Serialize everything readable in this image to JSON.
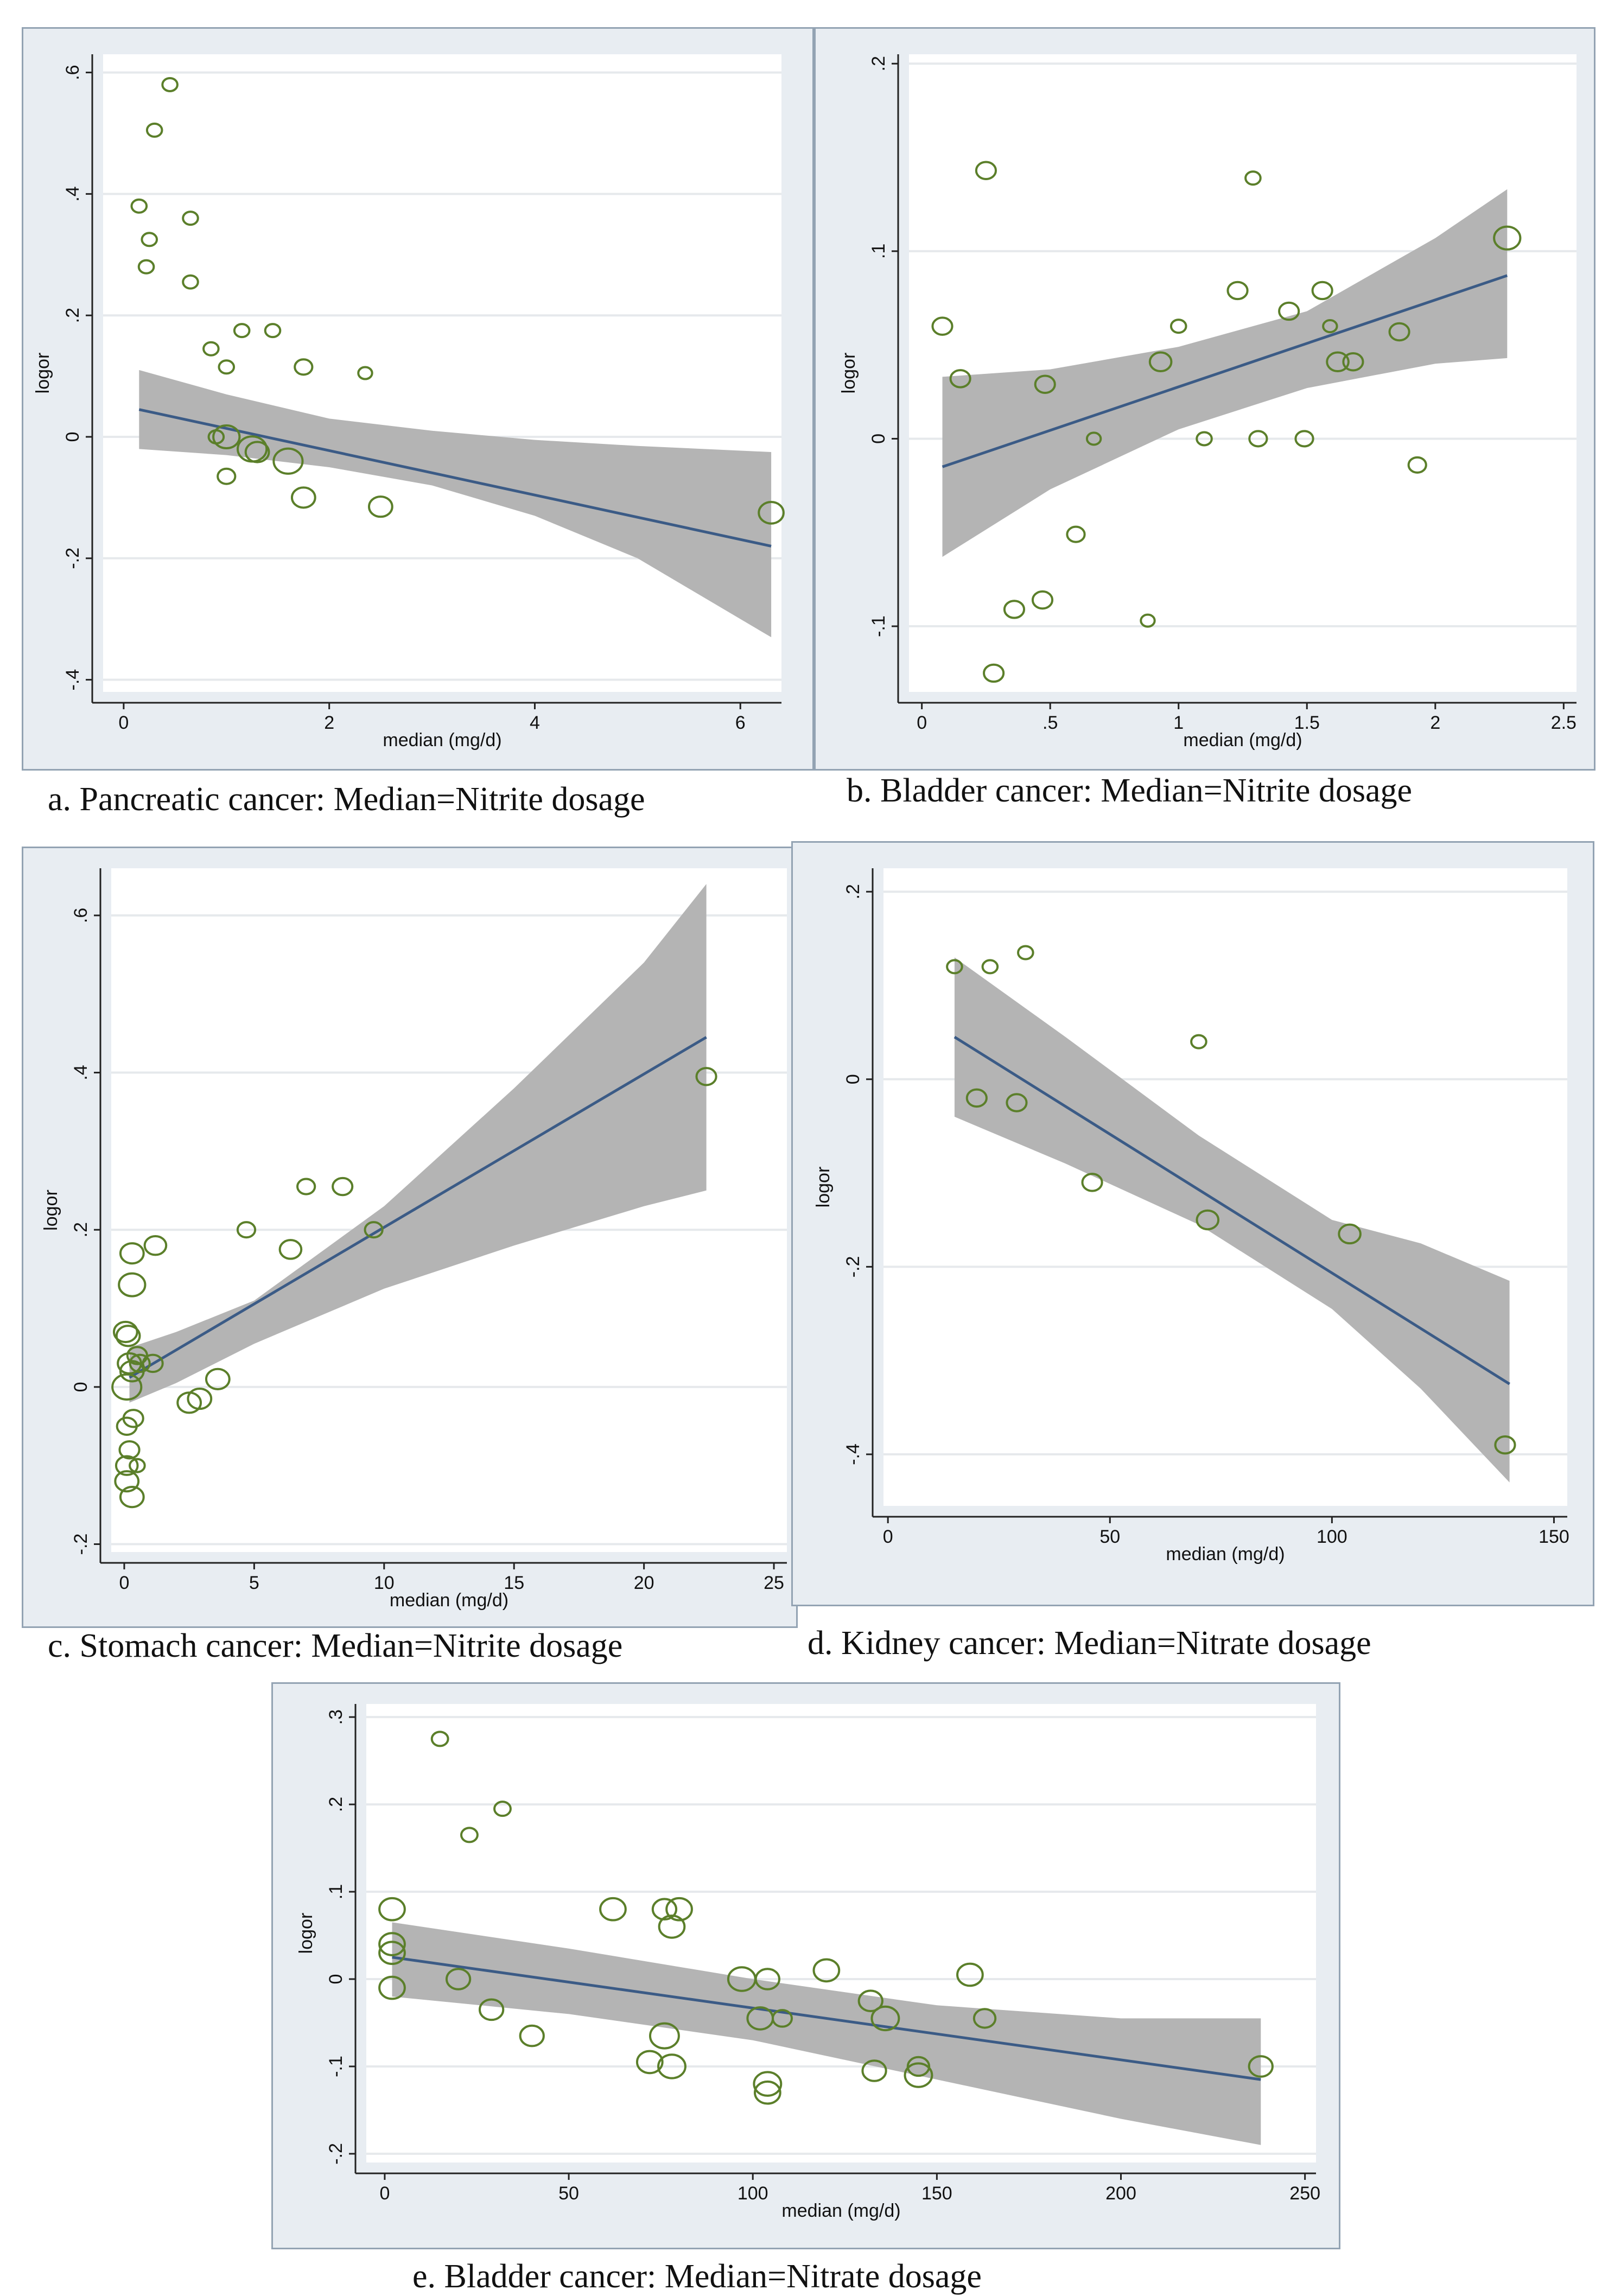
{
  "chart_data": [
    {
      "id": "a",
      "type": "scatter",
      "caption": "a. Pancreatic cancer: Median=Nitrite dosage",
      "xlabel": "median (mg/d)",
      "ylabel": "logor",
      "xlim": [
        -0.2,
        6.4
      ],
      "ylim": [
        -0.42,
        0.63
      ],
      "xticks": [
        {
          "v": 0,
          "label": "0"
        },
        {
          "v": 2,
          "label": "2"
        },
        {
          "v": 4,
          "label": "4"
        },
        {
          "v": 6,
          "label": "6"
        }
      ],
      "yticks": [
        {
          "v": -0.4,
          "label": "-.4"
        },
        {
          "v": -0.2,
          "label": "-.2"
        },
        {
          "v": 0,
          "label": "0"
        },
        {
          "v": 0.2,
          "label": ".2"
        },
        {
          "v": 0.4,
          "label": ".4"
        },
        {
          "v": 0.6,
          "label": ".6"
        }
      ],
      "fit": {
        "x0": 0.15,
        "y0": 0.045,
        "x1": 6.3,
        "y1": -0.18
      },
      "ci": {
        "xs": [
          0.15,
          1,
          2,
          3,
          4,
          5,
          6.3
        ],
        "lo": [
          -0.02,
          -0.03,
          -0.05,
          -0.08,
          -0.13,
          -0.2,
          -0.33
        ],
        "hi": [
          0.11,
          0.07,
          0.03,
          0.01,
          -0.005,
          -0.015,
          -0.025
        ]
      },
      "points": [
        {
          "x": 0.45,
          "y": 0.58,
          "w": 1
        },
        {
          "x": 0.3,
          "y": 0.505,
          "w": 1
        },
        {
          "x": 0.15,
          "y": 0.38,
          "w": 1
        },
        {
          "x": 0.65,
          "y": 0.36,
          "w": 1
        },
        {
          "x": 0.25,
          "y": 0.325,
          "w": 1
        },
        {
          "x": 0.22,
          "y": 0.28,
          "w": 1
        },
        {
          "x": 0.65,
          "y": 0.255,
          "w": 1
        },
        {
          "x": 1.15,
          "y": 0.175,
          "w": 1
        },
        {
          "x": 1.45,
          "y": 0.175,
          "w": 1
        },
        {
          "x": 0.85,
          "y": 0.145,
          "w": 1
        },
        {
          "x": 1.75,
          "y": 0.115,
          "w": 1.5
        },
        {
          "x": 1.0,
          "y": 0.115,
          "w": 1
        },
        {
          "x": 2.35,
          "y": 0.105,
          "w": 0.8
        },
        {
          "x": 0.9,
          "y": 0.0,
          "w": 1
        },
        {
          "x": 1.0,
          "y": 0.0,
          "w": 4
        },
        {
          "x": 1.25,
          "y": -0.02,
          "w": 5
        },
        {
          "x": 1.3,
          "y": -0.025,
          "w": 3
        },
        {
          "x": 1.6,
          "y": -0.04,
          "w": 5
        },
        {
          "x": 1.0,
          "y": -0.065,
          "w": 1.5
        },
        {
          "x": 1.75,
          "y": -0.1,
          "w": 3
        },
        {
          "x": 2.5,
          "y": -0.115,
          "w": 3
        },
        {
          "x": 6.3,
          "y": -0.125,
          "w": 3.5
        }
      ]
    },
    {
      "id": "b",
      "type": "scatter",
      "caption": "b. Bladder cancer: Median=Nitrite dosage",
      "xlabel": "median (mg/d)",
      "ylabel": "logor",
      "xlim": [
        -0.05,
        2.55
      ],
      "ylim": [
        -0.135,
        0.205
      ],
      "xticks": [
        {
          "v": 0,
          "label": "0"
        },
        {
          "v": 0.5,
          "label": ".5"
        },
        {
          "v": 1,
          "label": "1"
        },
        {
          "v": 1.5,
          "label": "1.5"
        },
        {
          "v": 2,
          "label": "2"
        },
        {
          "v": 2.5,
          "label": "2.5"
        }
      ],
      "yticks": [
        {
          "v": -0.1,
          "label": "-.1"
        },
        {
          "v": 0,
          "label": "0"
        },
        {
          "v": 0.1,
          "label": ".1"
        },
        {
          "v": 0.2,
          "label": ".2"
        }
      ],
      "fit": {
        "x0": 0.08,
        "y0": -0.015,
        "x1": 2.28,
        "y1": 0.087
      },
      "ci": {
        "xs": [
          0.08,
          0.5,
          1.0,
          1.5,
          2.0,
          2.28
        ],
        "lo": [
          -0.063,
          -0.027,
          0.005,
          0.027,
          0.04,
          0.043
        ],
        "hi": [
          0.033,
          0.037,
          0.049,
          0.068,
          0.107,
          0.133
        ]
      },
      "points": [
        {
          "x": 0.25,
          "y": 0.143,
          "w": 2
        },
        {
          "x": 1.29,
          "y": 0.139,
          "w": 1
        },
        {
          "x": 2.28,
          "y": 0.107,
          "w": 4
        },
        {
          "x": 1.23,
          "y": 0.079,
          "w": 2
        },
        {
          "x": 1.56,
          "y": 0.079,
          "w": 2
        },
        {
          "x": 1.43,
          "y": 0.068,
          "w": 2
        },
        {
          "x": 0.08,
          "y": 0.06,
          "w": 2
        },
        {
          "x": 1.0,
          "y": 0.06,
          "w": 1
        },
        {
          "x": 1.59,
          "y": 0.06,
          "w": 0.8
        },
        {
          "x": 1.86,
          "y": 0.057,
          "w": 2
        },
        {
          "x": 0.93,
          "y": 0.041,
          "w": 2.5
        },
        {
          "x": 1.62,
          "y": 0.041,
          "w": 2.5
        },
        {
          "x": 1.68,
          "y": 0.041,
          "w": 2
        },
        {
          "x": 0.15,
          "y": 0.032,
          "w": 2
        },
        {
          "x": 0.48,
          "y": 0.029,
          "w": 2
        },
        {
          "x": 0.67,
          "y": 0.0,
          "w": 0.8
        },
        {
          "x": 1.1,
          "y": 0.0,
          "w": 1
        },
        {
          "x": 1.31,
          "y": 0.0,
          "w": 1.5
        },
        {
          "x": 1.49,
          "y": 0.0,
          "w": 1.5
        },
        {
          "x": 1.93,
          "y": -0.014,
          "w": 1.5
        },
        {
          "x": 0.6,
          "y": -0.051,
          "w": 1.5
        },
        {
          "x": 0.36,
          "y": -0.091,
          "w": 2
        },
        {
          "x": 0.47,
          "y": -0.086,
          "w": 2
        },
        {
          "x": 0.88,
          "y": -0.097,
          "w": 0.8
        },
        {
          "x": 0.28,
          "y": -0.125,
          "w": 2
        }
      ]
    },
    {
      "id": "c",
      "type": "scatter",
      "caption": "c. Stomach cancer: Median=Nitrite dosage",
      "xlabel": "median (mg/d)",
      "ylabel": "logor",
      "xlim": [
        -0.5,
        25.5
      ],
      "ylim": [
        -0.21,
        0.66
      ],
      "xticks": [
        {
          "v": 0,
          "label": "0"
        },
        {
          "v": 5,
          "label": "5"
        },
        {
          "v": 10,
          "label": "10"
        },
        {
          "v": 15,
          "label": "15"
        },
        {
          "v": 20,
          "label": "20"
        },
        {
          "v": 25,
          "label": "25"
        }
      ],
      "yticks": [
        {
          "v": -0.2,
          "label": "-.2"
        },
        {
          "v": 0,
          "label": "0"
        },
        {
          "v": 0.2,
          "label": ".2"
        },
        {
          "v": 0.4,
          "label": ".4"
        },
        {
          "v": 0.6,
          "label": ".6"
        }
      ],
      "fit": {
        "x0": 0.2,
        "y0": 0.012,
        "x1": 22.4,
        "y1": 0.445
      },
      "ci": {
        "xs": [
          0.2,
          2,
          5,
          10,
          15,
          20,
          22.4
        ],
        "lo": [
          -0.02,
          0.005,
          0.055,
          0.125,
          0.18,
          0.23,
          0.25
        ],
        "hi": [
          0.05,
          0.07,
          0.11,
          0.23,
          0.38,
          0.54,
          0.64
        ]
      },
      "points": [
        {
          "x": 0.1,
          "y": 0.0,
          "w": 5
        },
        {
          "x": 0.2,
          "y": 0.03,
          "w": 3
        },
        {
          "x": 0.3,
          "y": 0.02,
          "w": 3
        },
        {
          "x": 0.15,
          "y": 0.065,
          "w": 3
        },
        {
          "x": 0.05,
          "y": 0.07,
          "w": 3
        },
        {
          "x": 0.3,
          "y": 0.13,
          "w": 4
        },
        {
          "x": 0.3,
          "y": 0.17,
          "w": 3
        },
        {
          "x": 1.2,
          "y": 0.18,
          "w": 2.5
        },
        {
          "x": 0.1,
          "y": -0.05,
          "w": 2
        },
        {
          "x": 0.2,
          "y": -0.08,
          "w": 2
        },
        {
          "x": 0.1,
          "y": -0.1,
          "w": 2.5
        },
        {
          "x": 0.1,
          "y": -0.12,
          "w": 3
        },
        {
          "x": 0.3,
          "y": -0.14,
          "w": 3
        },
        {
          "x": 0.5,
          "y": -0.1,
          "w": 1
        },
        {
          "x": 0.5,
          "y": 0.04,
          "w": 2
        },
        {
          "x": 1.1,
          "y": 0.03,
          "w": 2
        },
        {
          "x": 2.5,
          "y": -0.02,
          "w": 3
        },
        {
          "x": 2.9,
          "y": -0.015,
          "w": 3
        },
        {
          "x": 3.6,
          "y": 0.01,
          "w": 3
        },
        {
          "x": 4.7,
          "y": 0.2,
          "w": 1.5
        },
        {
          "x": 6.4,
          "y": 0.175,
          "w": 2.5
        },
        {
          "x": 7,
          "y": 0.255,
          "w": 1.5
        },
        {
          "x": 8.4,
          "y": 0.255,
          "w": 2
        },
        {
          "x": 9.6,
          "y": 0.2,
          "w": 1.5
        },
        {
          "x": 22.4,
          "y": 0.395,
          "w": 2
        },
        {
          "x": 0.6,
          "y": 0.03,
          "w": 2
        },
        {
          "x": 0.35,
          "y": -0.04,
          "w": 2
        }
      ]
    },
    {
      "id": "d",
      "type": "scatter",
      "caption": "d. Kidney cancer: Median=Nitrate dosage",
      "xlabel": "median (mg/d)",
      "ylabel": "logor",
      "xlim": [
        -1,
        153
      ],
      "ylim": [
        -0.455,
        0.225
      ],
      "xticks": [
        {
          "v": 0,
          "label": "0"
        },
        {
          "v": 50,
          "label": "50"
        },
        {
          "v": 100,
          "label": "100"
        },
        {
          "v": 150,
          "label": "150"
        }
      ],
      "yticks": [
        {
          "v": -0.4,
          "label": "-.4"
        },
        {
          "v": -0.2,
          "label": "-.2"
        },
        {
          "v": 0,
          "label": "0"
        },
        {
          "v": 0.2,
          "label": ".2"
        }
      ],
      "fit": {
        "x0": 15,
        "y0": 0.045,
        "x1": 140,
        "y1": -0.325
      },
      "ci": {
        "xs": [
          15,
          40,
          70,
          100,
          120,
          140
        ],
        "lo": [
          -0.04,
          -0.09,
          -0.155,
          -0.245,
          -0.33,
          -0.43
        ],
        "hi": [
          0.13,
          0.045,
          -0.06,
          -0.15,
          -0.175,
          -0.215
        ]
      },
      "points": [
        {
          "x": 15,
          "y": 0.12,
          "w": 1
        },
        {
          "x": 23,
          "y": 0.12,
          "w": 1
        },
        {
          "x": 31,
          "y": 0.135,
          "w": 1
        },
        {
          "x": 70,
          "y": 0.04,
          "w": 1
        },
        {
          "x": 20,
          "y": -0.02,
          "w": 2
        },
        {
          "x": 29,
          "y": -0.025,
          "w": 2
        },
        {
          "x": 46,
          "y": -0.11,
          "w": 2
        },
        {
          "x": 72,
          "y": -0.15,
          "w": 2.5
        },
        {
          "x": 104,
          "y": -0.165,
          "w": 2.5
        },
        {
          "x": 139,
          "y": -0.39,
          "w": 2
        }
      ]
    },
    {
      "id": "e",
      "type": "scatter",
      "caption": "e. Bladder cancer: Median=Nitrate dosage",
      "xlabel": "median (mg/d)",
      "ylabel": "logor",
      "xlim": [
        -5,
        253
      ],
      "ylim": [
        -0.21,
        0.315
      ],
      "xticks": [
        {
          "v": 0,
          "label": "0"
        },
        {
          "v": 50,
          "label": "50"
        },
        {
          "v": 100,
          "label": "100"
        },
        {
          "v": 150,
          "label": "150"
        },
        {
          "v": 200,
          "label": "200"
        },
        {
          "v": 250,
          "label": "250"
        }
      ],
      "yticks": [
        {
          "v": -0.2,
          "label": "-.2"
        },
        {
          "v": -0.1,
          "label": "-.1"
        },
        {
          "v": 0,
          "label": "0"
        },
        {
          "v": 0.1,
          "label": ".1"
        },
        {
          "v": 0.2,
          "label": ".2"
        },
        {
          "v": 0.3,
          "label": ".3"
        }
      ],
      "fit": {
        "x0": 2,
        "y0": 0.025,
        "x1": 238,
        "y1": -0.115
      },
      "ci": {
        "xs": [
          2,
          50,
          100,
          150,
          200,
          238
        ],
        "lo": [
          -0.02,
          -0.04,
          -0.07,
          -0.115,
          -0.16,
          -0.19
        ],
        "hi": [
          0.065,
          0.035,
          0.0,
          -0.03,
          -0.045,
          -0.045
        ]
      },
      "points": [
        {
          "x": 15,
          "y": 0.275,
          "w": 1
        },
        {
          "x": 32,
          "y": 0.195,
          "w": 1
        },
        {
          "x": 23,
          "y": 0.165,
          "w": 1
        },
        {
          "x": 2,
          "y": 0.08,
          "w": 3
        },
        {
          "x": 2,
          "y": 0.04,
          "w": 3
        },
        {
          "x": 2,
          "y": 0.03,
          "w": 3
        },
        {
          "x": 2,
          "y": -0.01,
          "w": 3
        },
        {
          "x": 20,
          "y": 0.0,
          "w": 2.5
        },
        {
          "x": 29,
          "y": -0.035,
          "w": 2.5
        },
        {
          "x": 40,
          "y": -0.065,
          "w": 2.5
        },
        {
          "x": 62,
          "y": 0.08,
          "w": 3
        },
        {
          "x": 76,
          "y": 0.08,
          "w": 2.5
        },
        {
          "x": 80,
          "y": 0.08,
          "w": 3
        },
        {
          "x": 78,
          "y": 0.06,
          "w": 3
        },
        {
          "x": 76,
          "y": -0.065,
          "w": 4
        },
        {
          "x": 72,
          "y": -0.095,
          "w": 3
        },
        {
          "x": 78,
          "y": -0.1,
          "w": 3.5
        },
        {
          "x": 97,
          "y": 0.0,
          "w": 3.5
        },
        {
          "x": 104,
          "y": 0.0,
          "w": 2.5
        },
        {
          "x": 102,
          "y": -0.045,
          "w": 3
        },
        {
          "x": 108,
          "y": -0.045,
          "w": 1.5
        },
        {
          "x": 120,
          "y": 0.01,
          "w": 3
        },
        {
          "x": 132,
          "y": -0.025,
          "w": 2.5
        },
        {
          "x": 136,
          "y": -0.045,
          "w": 3.5
        },
        {
          "x": 133,
          "y": -0.105,
          "w": 2.5
        },
        {
          "x": 145,
          "y": -0.1,
          "w": 2
        },
        {
          "x": 145,
          "y": -0.11,
          "w": 3.5
        },
        {
          "x": 104,
          "y": -0.12,
          "w": 3.5
        },
        {
          "x": 104,
          "y": -0.13,
          "w": 3
        },
        {
          "x": 159,
          "y": 0.005,
          "w": 3
        },
        {
          "x": 163,
          "y": -0.045,
          "w": 2
        },
        {
          "x": 238,
          "y": -0.1,
          "w": 2.5
        }
      ]
    }
  ]
}
